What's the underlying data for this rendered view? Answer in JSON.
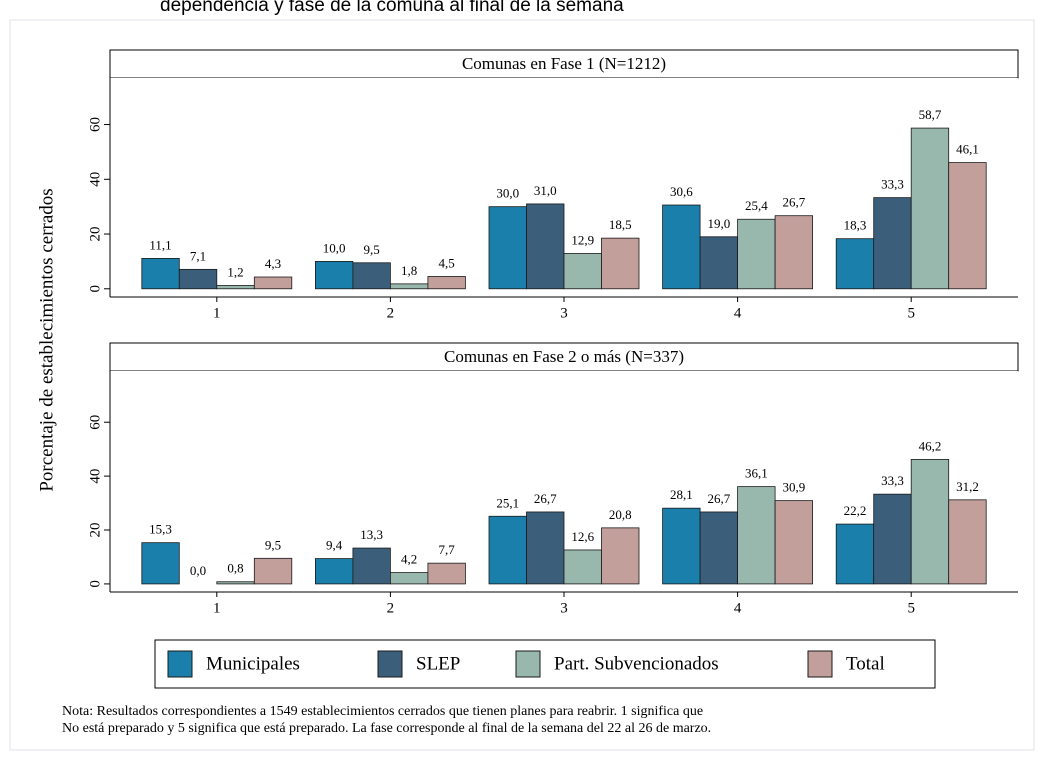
{
  "title": "dependencia y fase de la comuna al final de la semana",
  "ylabel": "Porcentaje de establecimientos cerrados",
  "note": [
    "Nota: Resultados correspondientes a 1549 establecimientos cerrados que tienen planes para reabrir. 1 significa que",
    "No está preparado y 5 significa que está preparado.  La fase corresponde al final de la semana del 22 al 26 de marzo."
  ],
  "chart_data": [
    {
      "type": "bar",
      "title": "Comunas en Fase 1 (N=1212)",
      "categories": [
        "1",
        "2",
        "3",
        "4",
        "5"
      ],
      "series": [
        {
          "name": "Municipales",
          "color": "#1a7faa",
          "values": [
            11.1,
            10.0,
            30.0,
            30.6,
            18.3
          ],
          "value_labels": [
            "11,1",
            "10,0",
            "30,0",
            "30,6",
            "18,3"
          ]
        },
        {
          "name": "SLEP",
          "color": "#3b5f7b",
          "values": [
            7.1,
            9.5,
            31.0,
            19.0,
            33.3
          ],
          "value_labels": [
            "7,1",
            "9,5",
            "31,0",
            "19,0",
            "33,3"
          ]
        },
        {
          "name": "Part. Subvencionados",
          "color": "#98b7ad",
          "values": [
            1.2,
            1.8,
            12.9,
            25.4,
            58.7
          ],
          "value_labels": [
            "1,2",
            "1,8",
            "12,9",
            "25,4",
            "58,7"
          ]
        },
        {
          "name": "Total",
          "color": "#c39f9c",
          "values": [
            4.3,
            4.5,
            18.5,
            26.7,
            46.1
          ],
          "value_labels": [
            "4,3",
            "4,5",
            "18,5",
            "26,7",
            "46,1"
          ]
        }
      ],
      "ylim": [
        -3,
        77
      ],
      "yticks": [
        0,
        20,
        40,
        60
      ]
    },
    {
      "type": "bar",
      "title": "Comunas en Fase 2 o más (N=337)",
      "categories": [
        "1",
        "2",
        "3",
        "4",
        "5"
      ],
      "series": [
        {
          "name": "Municipales",
          "color": "#1a7faa",
          "values": [
            15.3,
            9.4,
            25.1,
            28.1,
            22.2
          ],
          "value_labels": [
            "15,3",
            "9,4",
            "25,1",
            "28,1",
            "22,2"
          ]
        },
        {
          "name": "SLEP",
          "color": "#3b5f7b",
          "values": [
            0.0,
            13.3,
            26.7,
            26.7,
            33.3
          ],
          "value_labels": [
            "0,0",
            "13,3",
            "26,7",
            "26,7",
            "33,3"
          ]
        },
        {
          "name": "Part. Subvencionados",
          "color": "#98b7ad",
          "values": [
            0.8,
            4.2,
            12.6,
            36.1,
            46.2
          ],
          "value_labels": [
            "0,8",
            "4,2",
            "12,6",
            "36,1",
            "46,2"
          ]
        },
        {
          "name": "Total",
          "color": "#c39f9c",
          "values": [
            9.5,
            7.7,
            20.8,
            30.9,
            31.2
          ],
          "value_labels": [
            "9,5",
            "7,7",
            "20,8",
            "30,9",
            "31,2"
          ]
        }
      ],
      "ylim": [
        -3,
        79
      ],
      "yticks": [
        0,
        20,
        40,
        60
      ]
    }
  ]
}
